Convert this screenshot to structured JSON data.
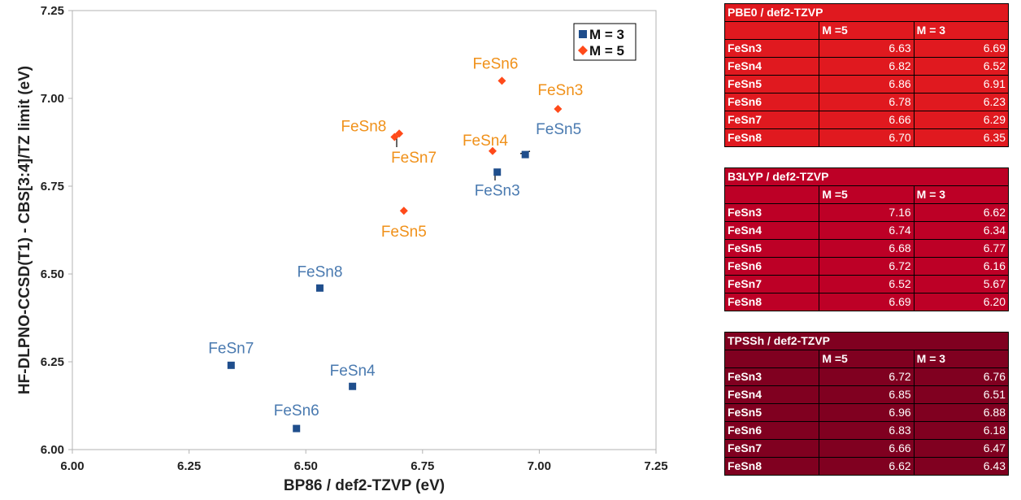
{
  "chart_data": {
    "type": "scatter",
    "title": "",
    "xlabel": "BP86 / def2-TZVP (eV)",
    "ylabel": "HF-DLPNO-CCSD(T1) - CBS[3:4]/TZ limit (eV)",
    "xlim": [
      6.0,
      7.25
    ],
    "ylim": [
      6.0,
      7.25
    ],
    "x_ticks": [
      "6.00",
      "6.25",
      "6.50",
      "6.75",
      "7.00",
      "7.25"
    ],
    "y_ticks": [
      "6.00",
      "6.25",
      "6.50",
      "6.75",
      "7.00",
      "7.25"
    ],
    "grid": false,
    "legend_position": "top-right",
    "series": [
      {
        "name": "M = 3",
        "color": "#1f4e8c",
        "label_color": "#4a7ab0",
        "marker": "square",
        "points": [
          {
            "label": "FeSn3",
            "x": 6.91,
            "y": 6.79
          },
          {
            "label": "FeSn4",
            "x": 6.6,
            "y": 6.18
          },
          {
            "label": "FeSn5",
            "x": 6.97,
            "y": 6.84
          },
          {
            "label": "FeSn6",
            "x": 6.48,
            "y": 6.06
          },
          {
            "label": "FeSn7",
            "x": 6.34,
            "y": 6.24
          },
          {
            "label": "FeSn8",
            "x": 6.53,
            "y": 6.46
          }
        ]
      },
      {
        "name": "M = 5",
        "color": "#ff4a1a",
        "label_color": "#f0911a",
        "marker": "diamond",
        "points": [
          {
            "label": "FeSn3",
            "x": 7.04,
            "y": 6.97
          },
          {
            "label": "FeSn4",
            "x": 6.9,
            "y": 6.85
          },
          {
            "label": "FeSn5",
            "x": 6.71,
            "y": 6.68
          },
          {
            "label": "FeSn6",
            "x": 6.92,
            "y": 7.05
          },
          {
            "label": "FeSn7",
            "x": 6.7,
            "y": 6.9
          },
          {
            "label": "FeSn8",
            "x": 6.69,
            "y": 6.89
          }
        ]
      }
    ]
  },
  "tables": [
    {
      "id": "pbe0",
      "title": "PBE0 / def2-TZVP",
      "columns": [
        "M =5",
        "M = 3"
      ],
      "rows": [
        {
          "label": "FeSn3",
          "m5": "6.63",
          "m3": "6.69"
        },
        {
          "label": "FeSn4",
          "m5": "6.82",
          "m3": "6.52"
        },
        {
          "label": "FeSn5",
          "m5": "6.86",
          "m3": "6.91"
        },
        {
          "label": "FeSn6",
          "m5": "6.78",
          "m3": "6.23"
        },
        {
          "label": "FeSn7",
          "m5": "6.66",
          "m3": "6.29"
        },
        {
          "label": "FeSn8",
          "m5": "6.70",
          "m3": "6.35"
        }
      ]
    },
    {
      "id": "b3lyp",
      "title": "B3LYP / def2-TZVP",
      "columns": [
        "M =5",
        "M = 3"
      ],
      "rows": [
        {
          "label": "FeSn3",
          "m5": "7.16",
          "m3": "6.62"
        },
        {
          "label": "FeSn4",
          "m5": "6.74",
          "m3": "6.34"
        },
        {
          "label": "FeSn5",
          "m5": "6.68",
          "m3": "6.77"
        },
        {
          "label": "FeSn6",
          "m5": "6.72",
          "m3": "6.16"
        },
        {
          "label": "FeSn7",
          "m5": "6.52",
          "m3": "5.67"
        },
        {
          "label": "FeSn8",
          "m5": "6.69",
          "m3": "6.20"
        }
      ]
    },
    {
      "id": "tpssh",
      "title": "TPSSh / def2-TZVP",
      "columns": [
        "M =5",
        "M = 3"
      ],
      "rows": [
        {
          "label": "FeSn3",
          "m5": "6.72",
          "m3": "6.76"
        },
        {
          "label": "FeSn4",
          "m5": "6.85",
          "m3": "6.51"
        },
        {
          "label": "FeSn5",
          "m5": "6.96",
          "m3": "6.88"
        },
        {
          "label": "FeSn6",
          "m5": "6.83",
          "m3": "6.18"
        },
        {
          "label": "FeSn7",
          "m5": "6.66",
          "m3": "6.47"
        },
        {
          "label": "FeSn8",
          "m5": "6.62",
          "m3": "6.43"
        }
      ]
    }
  ]
}
